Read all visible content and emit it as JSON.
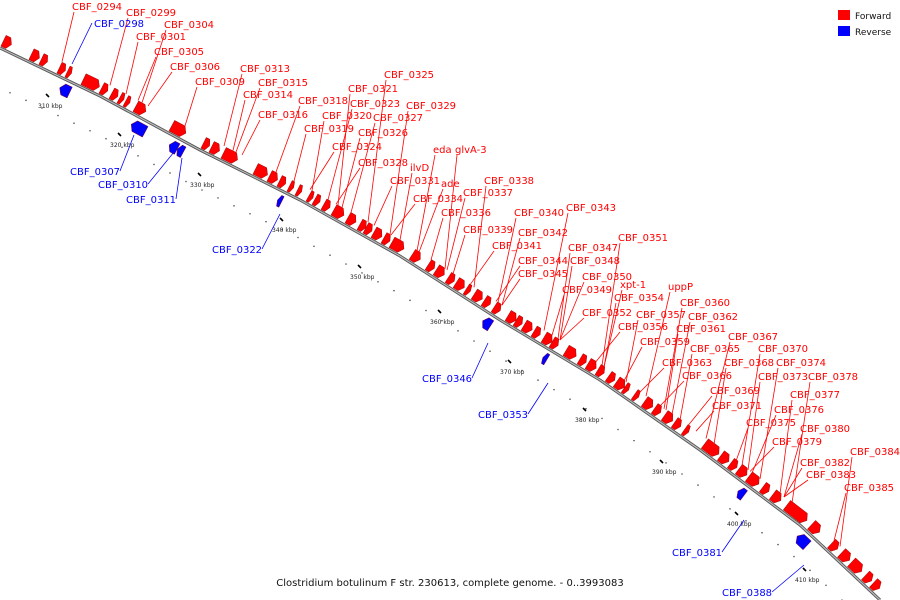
{
  "caption": "Clostridium botulinum F str. 230613, complete genome. - 0..3993083",
  "legend": [
    {
      "label": "Forward",
      "color": "#ff0000"
    },
    {
      "label": "Reverse",
      "color": "#0000ff"
    }
  ],
  "colors": {
    "forward": "#ff0000",
    "reverse": "#0000ff",
    "backbone": "#888888"
  },
  "ticks": [
    "310 kbp",
    "320 kbp",
    "330 kbp",
    "340 kbp",
    "350 kbp",
    "360 kbp",
    "370 kbp",
    "380 kbp",
    "390 kbp",
    "400 kbp",
    "410 kbp"
  ],
  "forward_labels": [
    "CBF_0294",
    "CBF_0299",
    "CBF_0304",
    "CBF_0301",
    "CBF_0305",
    "CBF_0306",
    "CBF_0309",
    "CBF_0313",
    "CBF_0315",
    "CBF_0314",
    "CBF_0316",
    "CBF_0318",
    "CBF_0321",
    "CBF_0325",
    "CBF_0323",
    "CBF_0320",
    "CBF_0329",
    "CBF_0327",
    "CBF_0319",
    "CBF_0326",
    "CBF_0324",
    "glvA-3",
    "eda",
    "CBF_0328",
    "ilvD",
    "CBF_0331",
    "ade",
    "CBF_0338",
    "CBF_0337",
    "CBF_0334",
    "CBF_0336",
    "CBF_0340",
    "CBF_0343",
    "CBF_0339",
    "CBF_0342",
    "CBF_0341",
    "CBF_0347",
    "CBF_0351",
    "CBF_0344",
    "CBF_0348",
    "CBF_0345",
    "CBF_0350",
    "CBF_0349",
    "xpt-1",
    "uppP",
    "CBF_0354",
    "CBF_0360",
    "CBF_0352",
    "CBF_0357",
    "CBF_0362",
    "CBF_0356",
    "CBF_0361",
    "CBF_0359",
    "CBF_0367",
    "CBF_0365",
    "CBF_0370",
    "CBF_0363",
    "CBF_0368",
    "CBF_0374",
    "CBF_0366",
    "CBF_0373",
    "CBF_0378",
    "CBF_0369",
    "CBF_0377",
    "CBF_0371",
    "CBF_0376",
    "CBF_0375",
    "CBF_0380",
    "CBF_0379",
    "CBF_0384",
    "CBF_0382",
    "CBF_0383",
    "CBF_0385"
  ],
  "reverse_labels": [
    "CBF_0298",
    "CBF_0307",
    "CBF_0310",
    "CBF_0311",
    "CBF_0322",
    "CBF_0346",
    "CBF_0353",
    "CBF_0381",
    "CBF_0388"
  ]
}
